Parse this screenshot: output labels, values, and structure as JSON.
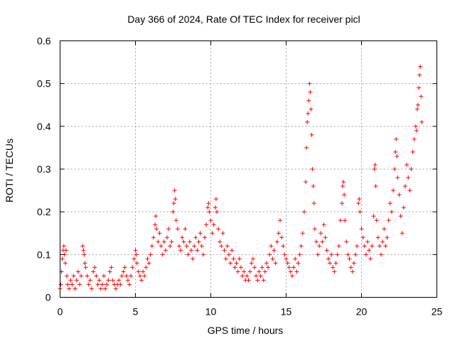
{
  "chart_data": {
    "type": "scatter",
    "title": "Day 366 of 2024, Rate Of TEC Index for receiver picl",
    "xlabel": "GPS time / hours",
    "ylabel": "ROTI / TECUs",
    "xlim": [
      0,
      25
    ],
    "ylim": [
      0,
      0.6
    ],
    "xticks": [
      0,
      5,
      10,
      15,
      20,
      25
    ],
    "xtick_labels": [
      "0",
      "5",
      "10",
      "15",
      "20",
      "25"
    ],
    "yticks": [
      0,
      0.1,
      0.2,
      0.3,
      0.4,
      0.5,
      0.6
    ],
    "ytick_labels": [
      "0",
      "0.1",
      "0.2",
      "0.3",
      "0.4",
      "0.5",
      "0.6"
    ],
    "grid": true,
    "marker": "+",
    "color": "#ff0000",
    "series": [
      {
        "name": "ROTI",
        "points": [
          [
            0.0,
            0.02
          ],
          [
            0.05,
            0.03
          ],
          [
            0.1,
            0.06
          ],
          [
            0.15,
            0.09
          ],
          [
            0.2,
            0.11
          ],
          [
            0.25,
            0.12
          ],
          [
            0.3,
            0.1
          ],
          [
            0.35,
            0.08
          ],
          [
            0.4,
            0.11
          ],
          [
            0.45,
            0.05
          ],
          [
            0.5,
            0.03
          ],
          [
            0.6,
            0.02
          ],
          [
            0.7,
            0.04
          ],
          [
            0.8,
            0.03
          ],
          [
            0.9,
            0.05
          ],
          [
            1.0,
            0.02
          ],
          [
            1.1,
            0.04
          ],
          [
            1.2,
            0.06
          ],
          [
            1.3,
            0.03
          ],
          [
            1.4,
            0.05
          ],
          [
            1.5,
            0.12
          ],
          [
            1.55,
            0.11
          ],
          [
            1.6,
            0.1
          ],
          [
            1.65,
            0.08
          ],
          [
            1.7,
            0.07
          ],
          [
            1.8,
            0.05
          ],
          [
            1.9,
            0.03
          ],
          [
            2.0,
            0.04
          ],
          [
            2.1,
            0.02
          ],
          [
            2.2,
            0.06
          ],
          [
            2.3,
            0.07
          ],
          [
            2.4,
            0.05
          ],
          [
            2.5,
            0.03
          ],
          [
            2.6,
            0.04
          ],
          [
            2.7,
            0.02
          ],
          [
            2.8,
            0.03
          ],
          [
            2.9,
            0.05
          ],
          [
            3.0,
            0.02
          ],
          [
            3.1,
            0.03
          ],
          [
            3.2,
            0.04
          ],
          [
            3.3,
            0.06
          ],
          [
            3.4,
            0.07
          ],
          [
            3.5,
            0.04
          ],
          [
            3.6,
            0.03
          ],
          [
            3.7,
            0.02
          ],
          [
            3.8,
            0.03
          ],
          [
            3.9,
            0.04
          ],
          [
            4.0,
            0.03
          ],
          [
            4.1,
            0.05
          ],
          [
            4.2,
            0.06
          ],
          [
            4.3,
            0.07
          ],
          [
            4.4,
            0.05
          ],
          [
            4.5,
            0.04
          ],
          [
            4.6,
            0.03
          ],
          [
            4.7,
            0.05
          ],
          [
            4.8,
            0.07
          ],
          [
            4.9,
            0.09
          ],
          [
            5.0,
            0.11
          ],
          [
            5.05,
            0.1
          ],
          [
            5.1,
            0.08
          ],
          [
            5.2,
            0.06
          ],
          [
            5.3,
            0.05
          ],
          [
            5.4,
            0.04
          ],
          [
            5.5,
            0.06
          ],
          [
            5.6,
            0.05
          ],
          [
            5.7,
            0.07
          ],
          [
            5.8,
            0.09
          ],
          [
            5.9,
            0.08
          ],
          [
            6.0,
            0.1
          ],
          [
            6.1,
            0.12
          ],
          [
            6.2,
            0.14
          ],
          [
            6.3,
            0.17
          ],
          [
            6.35,
            0.19
          ],
          [
            6.4,
            0.16
          ],
          [
            6.5,
            0.13
          ],
          [
            6.6,
            0.15
          ],
          [
            6.7,
            0.12
          ],
          [
            6.8,
            0.1
          ],
          [
            6.9,
            0.13
          ],
          [
            7.0,
            0.11
          ],
          [
            7.1,
            0.14
          ],
          [
            7.2,
            0.16
          ],
          [
            7.3,
            0.12
          ],
          [
            7.4,
            0.13
          ],
          [
            7.5,
            0.2
          ],
          [
            7.55,
            0.22
          ],
          [
            7.6,
            0.25
          ],
          [
            7.65,
            0.23
          ],
          [
            7.7,
            0.18
          ],
          [
            7.8,
            0.16
          ],
          [
            7.9,
            0.12
          ],
          [
            8.0,
            0.11
          ],
          [
            8.1,
            0.14
          ],
          [
            8.2,
            0.13
          ],
          [
            8.3,
            0.16
          ],
          [
            8.4,
            0.12
          ],
          [
            8.5,
            0.1
          ],
          [
            8.6,
            0.13
          ],
          [
            8.7,
            0.11
          ],
          [
            8.8,
            0.09
          ],
          [
            8.9,
            0.12
          ],
          [
            9.0,
            0.14
          ],
          [
            9.1,
            0.11
          ],
          [
            9.2,
            0.13
          ],
          [
            9.3,
            0.15
          ],
          [
            9.4,
            0.12
          ],
          [
            9.5,
            0.1
          ],
          [
            9.6,
            0.14
          ],
          [
            9.7,
            0.17
          ],
          [
            9.8,
            0.21
          ],
          [
            9.85,
            0.22
          ],
          [
            9.9,
            0.2
          ],
          [
            10.0,
            0.18
          ],
          [
            10.1,
            0.15
          ],
          [
            10.2,
            0.17
          ],
          [
            10.3,
            0.21
          ],
          [
            10.35,
            0.23
          ],
          [
            10.4,
            0.2
          ],
          [
            10.5,
            0.16
          ],
          [
            10.6,
            0.13
          ],
          [
            10.7,
            0.12
          ],
          [
            10.8,
            0.15
          ],
          [
            10.9,
            0.11
          ],
          [
            11.0,
            0.09
          ],
          [
            11.1,
            0.12
          ],
          [
            11.2,
            0.1
          ],
          [
            11.3,
            0.08
          ],
          [
            11.4,
            0.11
          ],
          [
            11.5,
            0.09
          ],
          [
            11.6,
            0.07
          ],
          [
            11.7,
            0.08
          ],
          [
            11.8,
            0.06
          ],
          [
            11.9,
            0.09
          ],
          [
            12.0,
            0.07
          ],
          [
            12.1,
            0.05
          ],
          [
            12.2,
            0.06
          ],
          [
            12.3,
            0.04
          ],
          [
            12.4,
            0.05
          ],
          [
            12.5,
            0.04
          ],
          [
            12.6,
            0.06
          ],
          [
            12.7,
            0.08
          ],
          [
            12.8,
            0.09
          ],
          [
            12.9,
            0.07
          ],
          [
            13.0,
            0.05
          ],
          [
            13.1,
            0.04
          ],
          [
            13.2,
            0.06
          ],
          [
            13.3,
            0.05
          ],
          [
            13.4,
            0.07
          ],
          [
            13.5,
            0.04
          ],
          [
            13.6,
            0.06
          ],
          [
            13.7,
            0.08
          ],
          [
            13.8,
            0.07
          ],
          [
            13.9,
            0.1
          ],
          [
            14.0,
            0.12
          ],
          [
            14.1,
            0.09
          ],
          [
            14.2,
            0.11
          ],
          [
            14.3,
            0.08
          ],
          [
            14.4,
            0.13
          ],
          [
            14.5,
            0.15
          ],
          [
            14.6,
            0.18
          ],
          [
            14.7,
            0.14
          ],
          [
            14.8,
            0.12
          ],
          [
            14.9,
            0.1
          ],
          [
            15.0,
            0.09
          ],
          [
            15.1,
            0.08
          ],
          [
            15.2,
            0.07
          ],
          [
            15.3,
            0.06
          ],
          [
            15.4,
            0.05
          ],
          [
            15.5,
            0.07
          ],
          [
            15.6,
            0.09
          ],
          [
            15.7,
            0.06
          ],
          [
            15.8,
            0.08
          ],
          [
            15.9,
            0.1
          ],
          [
            16.0,
            0.12
          ],
          [
            16.1,
            0.15
          ],
          [
            16.2,
            0.2
          ],
          [
            16.3,
            0.27
          ],
          [
            16.35,
            0.35
          ],
          [
            16.4,
            0.41
          ],
          [
            16.45,
            0.43
          ],
          [
            16.5,
            0.46
          ],
          [
            16.55,
            0.5
          ],
          [
            16.6,
            0.48
          ],
          [
            16.65,
            0.44
          ],
          [
            16.7,
            0.38
          ],
          [
            16.75,
            0.3
          ],
          [
            16.8,
            0.26
          ],
          [
            16.85,
            0.22
          ],
          [
            16.9,
            0.16
          ],
          [
            17.0,
            0.13
          ],
          [
            17.1,
            0.1
          ],
          [
            17.2,
            0.12
          ],
          [
            17.3,
            0.15
          ],
          [
            17.4,
            0.13
          ],
          [
            17.5,
            0.17
          ],
          [
            17.6,
            0.14
          ],
          [
            17.7,
            0.11
          ],
          [
            17.8,
            0.09
          ],
          [
            17.9,
            0.08
          ],
          [
            18.0,
            0.1
          ],
          [
            18.1,
            0.07
          ],
          [
            18.2,
            0.06
          ],
          [
            18.3,
            0.08
          ],
          [
            18.4,
            0.1
          ],
          [
            18.5,
            0.12
          ],
          [
            18.6,
            0.18
          ],
          [
            18.7,
            0.22
          ],
          [
            18.75,
            0.26
          ],
          [
            18.8,
            0.27
          ],
          [
            18.85,
            0.24
          ],
          [
            18.9,
            0.18
          ],
          [
            19.0,
            0.13
          ],
          [
            19.1,
            0.1
          ],
          [
            19.2,
            0.09
          ],
          [
            19.3,
            0.07
          ],
          [
            19.4,
            0.06
          ],
          [
            19.5,
            0.08
          ],
          [
            19.6,
            0.1
          ],
          [
            19.7,
            0.12
          ],
          [
            19.8,
            0.22
          ],
          [
            19.85,
            0.23
          ],
          [
            19.9,
            0.2
          ],
          [
            20.0,
            0.16
          ],
          [
            20.1,
            0.14
          ],
          [
            20.2,
            0.12
          ],
          [
            20.3,
            0.1
          ],
          [
            20.4,
            0.13
          ],
          [
            20.5,
            0.11
          ],
          [
            20.6,
            0.09
          ],
          [
            20.7,
            0.12
          ],
          [
            20.8,
            0.19
          ],
          [
            20.85,
            0.3
          ],
          [
            20.9,
            0.31
          ],
          [
            20.95,
            0.26
          ],
          [
            21.0,
            0.18
          ],
          [
            21.1,
            0.14
          ],
          [
            21.2,
            0.12
          ],
          [
            21.3,
            0.1
          ],
          [
            21.4,
            0.13
          ],
          [
            21.5,
            0.16
          ],
          [
            21.6,
            0.12
          ],
          [
            21.7,
            0.14
          ],
          [
            21.8,
            0.18
          ],
          [
            21.9,
            0.22
          ],
          [
            22.0,
            0.2
          ],
          [
            22.1,
            0.25
          ],
          [
            22.2,
            0.3
          ],
          [
            22.25,
            0.34
          ],
          [
            22.3,
            0.37
          ],
          [
            22.35,
            0.33
          ],
          [
            22.4,
            0.28
          ],
          [
            22.5,
            0.24
          ],
          [
            22.6,
            0.19
          ],
          [
            22.7,
            0.15
          ],
          [
            22.8,
            0.21
          ],
          [
            22.9,
            0.26
          ],
          [
            23.0,
            0.31
          ],
          [
            23.1,
            0.28
          ],
          [
            23.2,
            0.25
          ],
          [
            23.3,
            0.3
          ],
          [
            23.4,
            0.34
          ],
          [
            23.5,
            0.37
          ],
          [
            23.6,
            0.4
          ],
          [
            23.65,
            0.39
          ],
          [
            23.7,
            0.44
          ],
          [
            23.75,
            0.45
          ],
          [
            23.8,
            0.49
          ],
          [
            23.85,
            0.52
          ],
          [
            23.9,
            0.54
          ],
          [
            23.95,
            0.47
          ],
          [
            24.0,
            0.41
          ]
        ]
      }
    ]
  }
}
